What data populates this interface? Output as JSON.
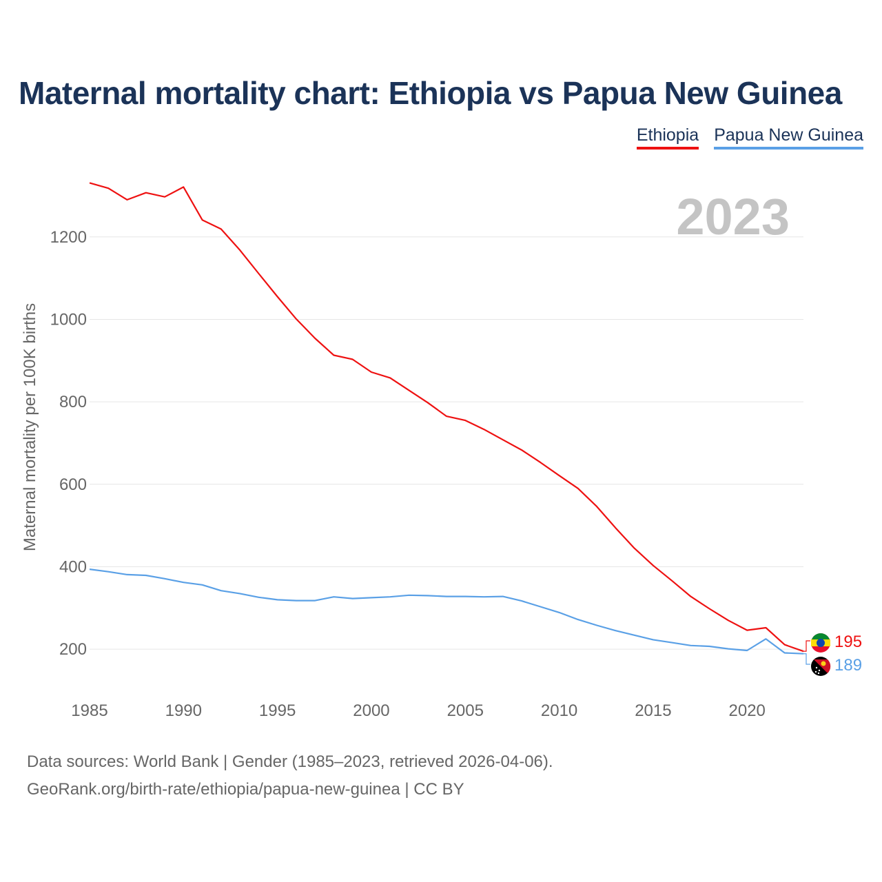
{
  "title": "Maternal mortality chart: Ethiopia vs Papua New Guinea",
  "legend": [
    {
      "label": "Ethiopia",
      "color": "#ee1111"
    },
    {
      "label": "Papua New Guinea",
      "color": "#5aa0e6"
    }
  ],
  "year_watermark": "2023",
  "footer": {
    "line1": "Data sources: World Bank | Gender (1985–2023, retrieved 2026-04-06).",
    "line2": "GeoRank.org/birth-rate/ethiopia/papua-new-guinea | CC BY"
  },
  "chart_data": {
    "type": "line",
    "title": "Maternal mortality chart: Ethiopia vs Papua New Guinea",
    "xlabel": "",
    "ylabel": "Maternal mortality per 100K births",
    "xlim": [
      1985,
      2023
    ],
    "ylim": [
      100,
      1340
    ],
    "xticks": [
      1985,
      1990,
      1995,
      2000,
      2005,
      2010,
      2015,
      2020
    ],
    "yticks": [
      200,
      400,
      600,
      800,
      1000,
      1200
    ],
    "grid": true,
    "x": [
      1985,
      1986,
      1987,
      1988,
      1989,
      1990,
      1991,
      1992,
      1993,
      1994,
      1995,
      1996,
      1997,
      1998,
      1999,
      2000,
      2001,
      2002,
      2003,
      2004,
      2005,
      2006,
      2007,
      2008,
      2009,
      2010,
      2011,
      2012,
      2013,
      2014,
      2015,
      2016,
      2017,
      2018,
      2019,
      2020,
      2021,
      2022,
      2023
    ],
    "series": [
      {
        "name": "Ethiopia",
        "color": "#ee1111",
        "end_label": "195",
        "values": [
          1331,
          1318,
          1290,
          1307,
          1297,
          1321,
          1241,
          1219,
          1168,
          1111,
          1055,
          1001,
          954,
          913,
          903,
          872,
          858,
          828,
          798,
          765,
          755,
          733,
          708,
          683,
          653,
          621,
          590,
          546,
          494,
          445,
          403,
          366,
          328,
          298,
          270,
          246,
          252,
          211,
          195
        ]
      },
      {
        "name": "Papua New Guinea",
        "color": "#5aa0e6",
        "end_label": "189",
        "values": [
          394,
          388,
          381,
          379,
          371,
          362,
          356,
          342,
          335,
          326,
          320,
          318,
          318,
          327,
          323,
          325,
          327,
          331,
          330,
          328,
          328,
          327,
          328,
          317,
          303,
          289,
          272,
          258,
          245,
          234,
          223,
          216,
          209,
          207,
          201,
          197,
          225,
          191,
          189
        ]
      }
    ]
  }
}
